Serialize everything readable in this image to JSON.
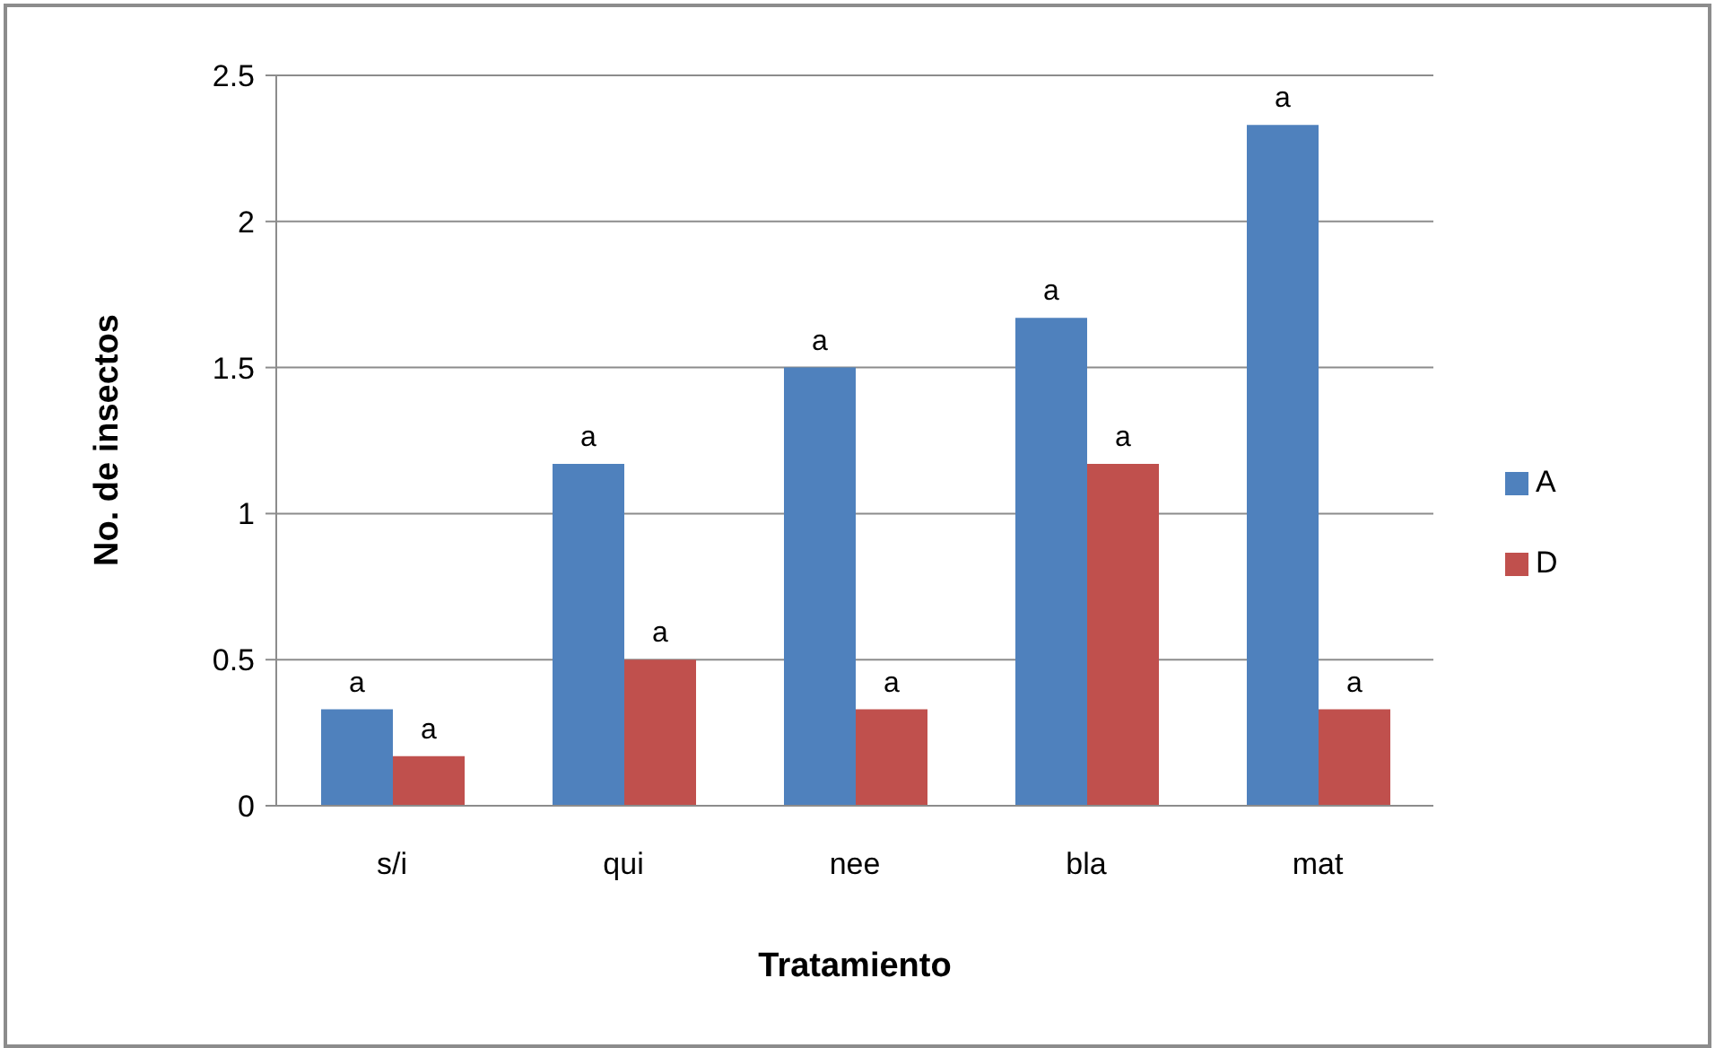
{
  "chart_data": {
    "type": "bar",
    "xlabel": "Tratamiento",
    "ylabel": "No. de insectos",
    "categories": [
      "s/i",
      "qui",
      "nee",
      "bla",
      "mat"
    ],
    "series": [
      {
        "name": "A",
        "color": "#4f81bd",
        "values": [
          0.33,
          1.17,
          1.5,
          1.67,
          2.33
        ]
      },
      {
        "name": "D",
        "color": "#c0504d",
        "values": [
          0.17,
          0.5,
          0.33,
          1.17,
          0.33
        ]
      }
    ],
    "ylim": [
      0,
      2.5
    ],
    "yticks": [
      0,
      0.5,
      1,
      1.5,
      2,
      2.5
    ],
    "grid": "y",
    "legend": "right",
    "annotations": [
      {
        "text": "a",
        "x": "s/i",
        "y": 0.33
      },
      {
        "text": "a",
        "x": "qui",
        "y": 1.17
      },
      {
        "text": "a",
        "x": "nee",
        "y": 1.5
      },
      {
        "text": "a",
        "x": "bla",
        "y": 1.67
      },
      {
        "text": "a",
        "x": "mat",
        "y": 2.33
      },
      {
        "text": "a",
        "x": "s/i",
        "y": 0.17
      },
      {
        "text": "a",
        "x": "qui",
        "y": 0.5
      },
      {
        "text": "a",
        "x": "nee",
        "y": 0.33
      },
      {
        "text": "a",
        "x": "bla",
        "y": 1.17
      },
      {
        "text": "a",
        "x": "mat",
        "y": 0.33
      }
    ]
  }
}
